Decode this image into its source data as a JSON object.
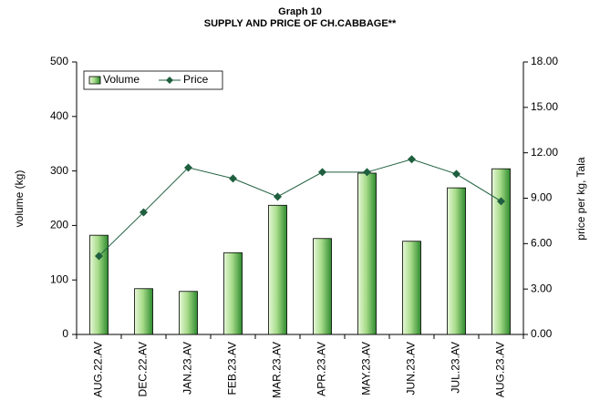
{
  "chart_data": {
    "type": "bar_line",
    "title": "Graph 10",
    "subtitle": "SUPPLY AND PRICE OF CH.CABBAGE**",
    "y_label": "volume (kg)",
    "y2_label": "price per kg, Tala",
    "categories": [
      "AUG.22.AV",
      "DEC.22.AV",
      "JAN.23.AV",
      "FEB.23.AV",
      "MAR.23.AV",
      "APR.23.AV",
      "MAY.23.AV",
      "JUN.23.AV",
      "JUL.23.AV",
      "AUG.23.AV"
    ],
    "series": [
      {
        "name": "Volume",
        "type": "bar",
        "color": "#2e8b2e",
        "values": [
          182,
          84,
          79,
          150,
          237,
          176,
          296,
          171,
          269,
          304
        ]
      },
      {
        "name": "Price",
        "type": "line",
        "axis": "y2",
        "color": "#1f5f3f",
        "values": [
          5.18,
          8.07,
          11.02,
          10.3,
          9.1,
          10.72,
          10.72,
          11.57,
          10.6,
          8.8
        ]
      }
    ],
    "ylim": [
      0,
      500
    ],
    "yticks": [
      0,
      100,
      200,
      300,
      400,
      500
    ],
    "y2lim": [
      0,
      18
    ],
    "y2ticks": [
      {
        "value": 0,
        "label": "0.00"
      },
      {
        "value": 3,
        "label": "3.00"
      },
      {
        "value": 6,
        "label": "6.00"
      },
      {
        "value": 9,
        "label": "9.00"
      },
      {
        "value": 12,
        "label": "12.00"
      },
      {
        "value": 15,
        "label": "15.00"
      },
      {
        "value": 18,
        "label": "18.00"
      }
    ],
    "legend": "top-left"
  }
}
